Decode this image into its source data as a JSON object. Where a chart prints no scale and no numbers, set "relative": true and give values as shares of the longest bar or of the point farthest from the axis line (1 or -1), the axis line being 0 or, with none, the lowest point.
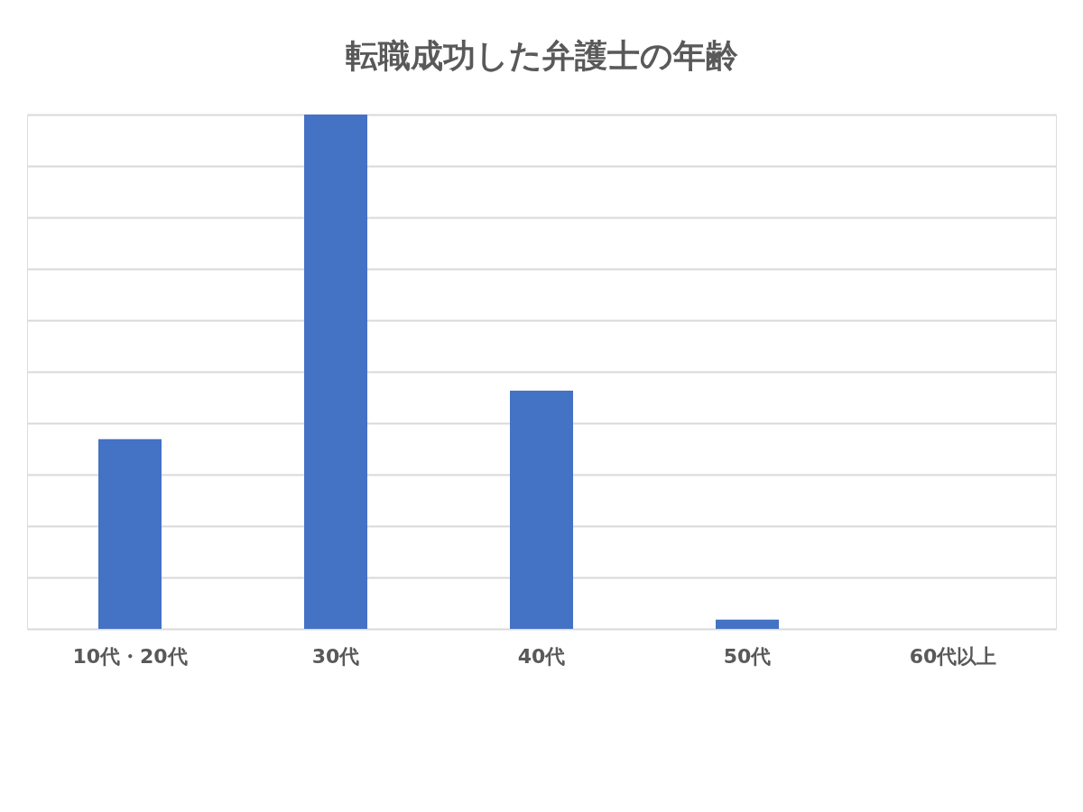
{
  "chart_data": {
    "type": "bar",
    "title": "転職成功した弁護士の年齢",
    "categories": [
      "10代・20代",
      "30代",
      "40代",
      "50代",
      "60代以上"
    ],
    "values": [
      0.369,
      1,
      0.463,
      0.018,
      0
    ],
    "color": "#4472c4",
    "relative": true,
    "grid": "y"
  }
}
